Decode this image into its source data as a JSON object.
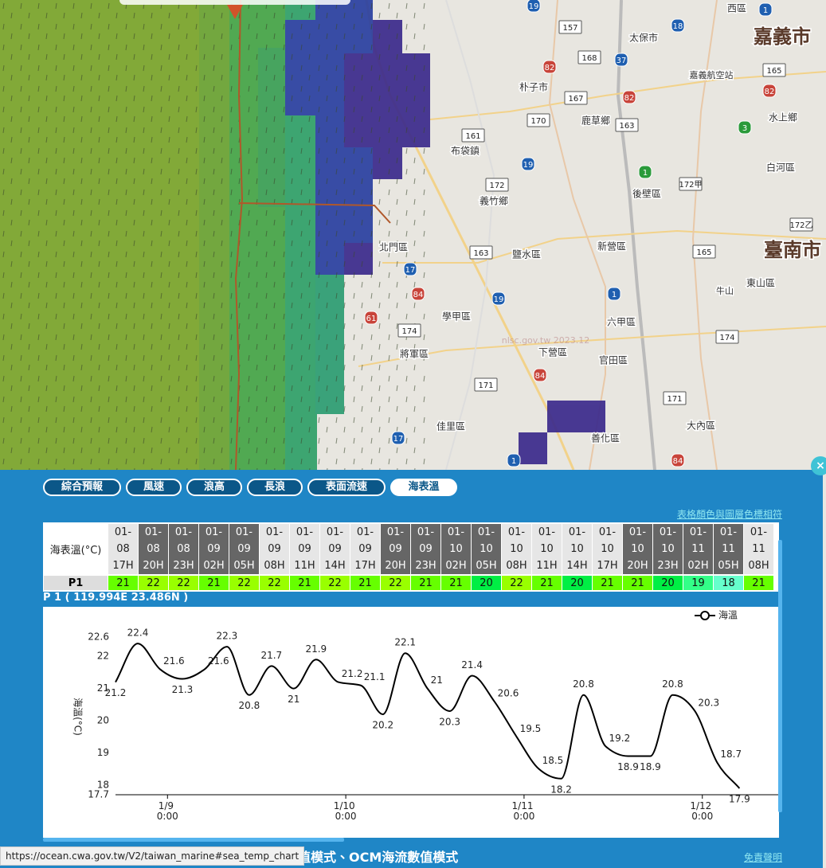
{
  "map": {
    "labels": [
      "嘉義市",
      "太保市",
      "朴子市",
      "嘉義航空站",
      "水上鄉",
      "鹿草鄉",
      "布袋鎮",
      "義竹鄉",
      "後壁區",
      "白河區",
      "臺南市",
      "北門區",
      "鹽水區",
      "新營區",
      "東山區",
      "牛山",
      "學甲區",
      "六甲區",
      "將軍區",
      "下營區",
      "官田區",
      "佳里區",
      "大內區",
      "善化區",
      "西區"
    ],
    "roads": [
      "157",
      "168",
      "165",
      "167",
      "170",
      "163",
      "161",
      "172",
      "172甲",
      "172乙",
      "163",
      "165",
      "174",
      "174",
      "171",
      "171",
      "19",
      "18",
      "37",
      "82",
      "82",
      "82",
      "19",
      "17",
      "84",
      "19",
      "1",
      "61",
      "84",
      "17",
      "1",
      "84",
      "1",
      "3",
      "1"
    ],
    "watermark": "nlsc.gov.tw 2023.12"
  },
  "tabs": [
    "綜合預報",
    "風速",
    "浪高",
    "長浪",
    "表面流速",
    "海表溫"
  ],
  "active_tab": 5,
  "legend_link": "表格顏色與圖層色標相符",
  "table": {
    "header": "海表溫(°C)",
    "columns": [
      {
        "date": "01-08",
        "hour": "17H",
        "dark": false
      },
      {
        "date": "01-08",
        "hour": "20H",
        "dark": true
      },
      {
        "date": "01-08",
        "hour": "23H",
        "dark": true
      },
      {
        "date": "01-09",
        "hour": "02H",
        "dark": true
      },
      {
        "date": "01-09",
        "hour": "05H",
        "dark": true
      },
      {
        "date": "01-09",
        "hour": "08H",
        "dark": false
      },
      {
        "date": "01-09",
        "hour": "11H",
        "dark": false
      },
      {
        "date": "01-09",
        "hour": "14H",
        "dark": false
      },
      {
        "date": "01-09",
        "hour": "17H",
        "dark": false
      },
      {
        "date": "01-09",
        "hour": "20H",
        "dark": true
      },
      {
        "date": "01-09",
        "hour": "23H",
        "dark": true
      },
      {
        "date": "01-10",
        "hour": "02H",
        "dark": true
      },
      {
        "date": "01-10",
        "hour": "05H",
        "dark": true
      },
      {
        "date": "01-10",
        "hour": "08H",
        "dark": false
      },
      {
        "date": "01-10",
        "hour": "11H",
        "dark": false
      },
      {
        "date": "01-10",
        "hour": "14H",
        "dark": false
      },
      {
        "date": "01-10",
        "hour": "17H",
        "dark": false
      },
      {
        "date": "01-10",
        "hour": "20H",
        "dark": true
      },
      {
        "date": "01-10",
        "hour": "23H",
        "dark": true
      },
      {
        "date": "01-11",
        "hour": "02H",
        "dark": true
      },
      {
        "date": "01-11",
        "hour": "05H",
        "dark": true
      },
      {
        "date": "01-11",
        "hour": "08H",
        "dark": false
      }
    ],
    "row_label": "P1",
    "values": [
      21,
      22,
      22,
      21,
      22,
      22,
      21,
      22,
      21,
      22,
      21,
      21,
      20,
      22,
      21,
      20,
      21,
      21,
      20,
      19,
      18,
      21
    ],
    "colors": [
      "#66ff00",
      "#99ff00",
      "#99ff00",
      "#66ff00",
      "#99ff00",
      "#99ff00",
      "#66ff00",
      "#99ff00",
      "#66ff00",
      "#99ff00",
      "#66ff00",
      "#66ff00",
      "#00ee44",
      "#99ff00",
      "#66ff00",
      "#00ee44",
      "#66ff00",
      "#66ff00",
      "#00ee44",
      "#33ff88",
      "#66ffcc",
      "#66ff00"
    ]
  },
  "chart_data": {
    "type": "line",
    "title": "P 1 ( 119.994E 23.486N )",
    "ylabel": "海溫(°C)",
    "x": [
      "1/8 17:00",
      "1/8 20:00",
      "1/8 23:00",
      "1/9 2:00",
      "1/9 5:00",
      "1/9 8:00",
      "1/9 11:00",
      "1/9 14:00",
      "1/9 17:00",
      "1/9 20:00",
      "1/9 23:00",
      "1/10 2:00",
      "1/10 5:00",
      "1/10 8:00",
      "1/10 11:00",
      "1/10 14:00",
      "1/10 17:00",
      "1/10 20:00",
      "1/10 23:00",
      "1/11 2:00",
      "1/11 5:00",
      "1/11 8:00",
      "1/11 11:00",
      "1/11 14:00",
      "1/11 17:00",
      "1/11 20:00",
      "1/11 23:00",
      "1/12 2:00",
      "1/12 5:00"
    ],
    "series": [
      {
        "name": "海溫",
        "color": "#000000",
        "values": [
          21.2,
          22.4,
          21.6,
          21.3,
          21.6,
          22.3,
          20.8,
          21.7,
          21,
          21.9,
          21.2,
          21.1,
          20.2,
          22.1,
          21,
          20.3,
          21.4,
          20.6,
          19.5,
          18.5,
          18.2,
          20.8,
          19.2,
          18.9,
          18.9,
          20.8,
          20.3,
          18.7,
          17.9
        ]
      }
    ],
    "xlim": [
      "1/8 17:00",
      "1/12 10:00"
    ],
    "xticks": [
      "1/9 0:00",
      "1/10 0:00",
      "1/11 0:00",
      "1/12 0:00"
    ],
    "ylim": [
      17.7,
      22.6
    ],
    "yticks": [
      17.7,
      18,
      19,
      20,
      21,
      22,
      22.6
    ],
    "legend": "upper right"
  },
  "footer": "波浪數值模式、OCM海流數值模式",
  "disclaimer": "免責聲明",
  "status_url": "https://ocean.cwa.gov.tw/V2/taiwan_marine#sea_temp_chart"
}
